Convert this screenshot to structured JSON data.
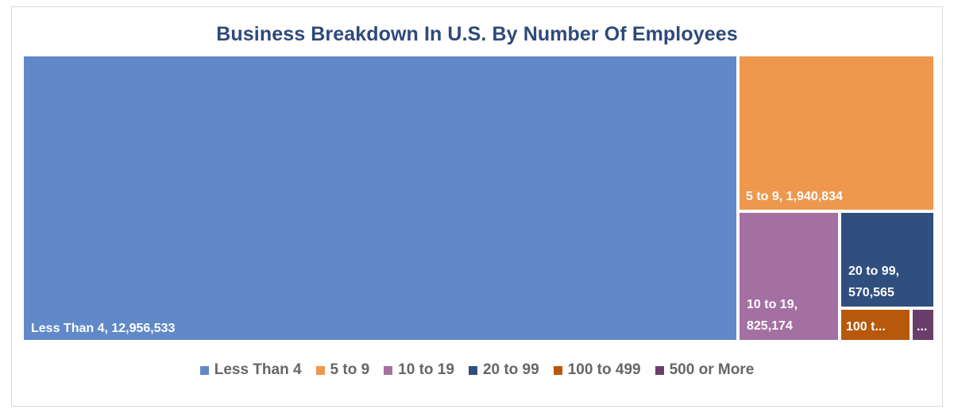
{
  "chart_data": {
    "type": "treemap",
    "title": "Business Breakdown In U.S. By Number Of Employees",
    "categories": [
      "Less Than 4",
      "5 to 9",
      "10 to 19",
      "20 to 99",
      "100 to 499",
      "500 or More"
    ],
    "values": [
      12956533,
      1940834,
      825174,
      570565,
      null,
      null
    ],
    "data_labels": [
      [
        "Less Than 4, 12,956,533"
      ],
      [
        "5 to 9, 1,940,834"
      ],
      [
        "10 to 19,",
        "825,174"
      ],
      [
        "20 to 99,",
        "570,565"
      ],
      [
        "100 t..."
      ],
      [
        "..."
      ]
    ],
    "colors": [
      "#6189c9",
      "#ee984e",
      "#a470a2",
      "#2f4f7e",
      "#b8580b",
      "#6a3e6a"
    ],
    "legend_position": "bottom"
  }
}
